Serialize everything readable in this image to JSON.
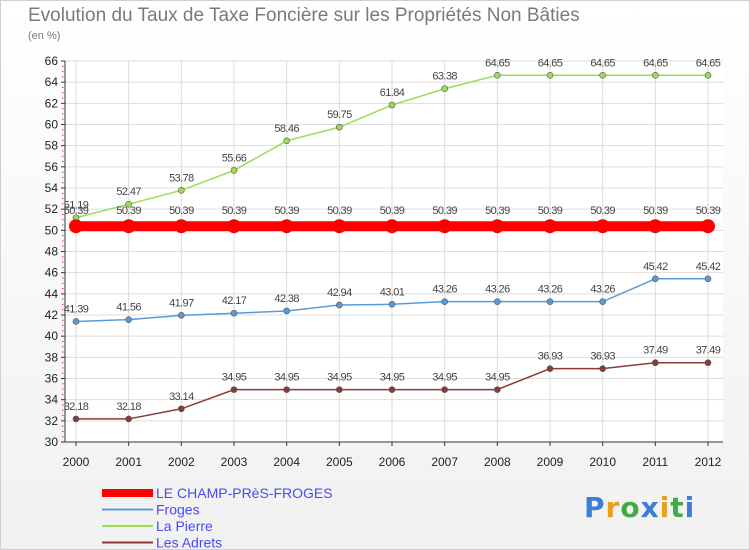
{
  "chart_data": {
    "type": "line",
    "title": "Evolution du Taux de Taxe Foncière sur les Propriétés Non Bâties",
    "ylabel": "(en %)",
    "xlabel": "",
    "ylim": [
      30,
      66
    ],
    "yticks": [
      30,
      32,
      34,
      36,
      38,
      40,
      42,
      44,
      46,
      48,
      50,
      52,
      54,
      56,
      58,
      60,
      62,
      64,
      66
    ],
    "categories": [
      "2000",
      "2001",
      "2002",
      "2003",
      "2004",
      "2005",
      "2006",
      "2007",
      "2008",
      "2009",
      "2010",
      "2011",
      "2012"
    ],
    "series": [
      {
        "name": "LE CHAMP-PRèS-FROGES",
        "color": "#ff0000",
        "values": [
          50.39,
          50.39,
          50.39,
          50.39,
          50.39,
          50.39,
          50.39,
          50.39,
          50.39,
          50.39,
          50.39,
          50.39,
          50.39
        ],
        "labels": [
          "50.39",
          "50.39",
          "50.39",
          "50.39",
          "50.39",
          "50.39",
          "50.39",
          "50.39",
          "50.39",
          "50.39",
          "50.39",
          "50.39",
          "50.39"
        ]
      },
      {
        "name": "Froges",
        "color": "#5b9bd5",
        "values": [
          41.39,
          41.56,
          41.97,
          42.17,
          42.38,
          42.94,
          43.01,
          43.26,
          43.26,
          43.26,
          43.26,
          45.42,
          45.42
        ],
        "labels": [
          "41.39",
          "41.56",
          "41.97",
          "42.17",
          "42.38",
          "42.94",
          "43.01",
          "43.26",
          "43.26",
          "43.26",
          "43.26",
          "45.42",
          "45.42"
        ]
      },
      {
        "name": "La Pierre",
        "color": "#99dd55",
        "values": [
          51.19,
          52.47,
          53.78,
          55.66,
          58.46,
          59.75,
          61.84,
          63.38,
          64.65,
          64.65,
          64.65,
          64.65,
          64.65
        ],
        "labels": [
          "51.19",
          "52.47",
          "53.78",
          "55.66",
          "58.46",
          "59.75",
          "61.84",
          "63.38",
          "64.65",
          "64.65",
          "64.65",
          "64.65",
          "64.65"
        ]
      },
      {
        "name": "Les Adrets",
        "color": "#8b3a3a",
        "values": [
          32.18,
          32.18,
          33.14,
          34.95,
          34.95,
          34.95,
          34.95,
          34.95,
          34.95,
          36.93,
          36.93,
          37.49,
          37.49
        ],
        "labels": [
          "32.18",
          "32.18",
          "33.14",
          "34.95",
          "34.95",
          "34.95",
          "34.95",
          "34.95",
          "34.95",
          "36.93",
          "36.93",
          "37.49",
          "37.49"
        ]
      }
    ],
    "legend": "bottom-left"
  },
  "logo": {
    "letters": [
      "P",
      "r",
      "o",
      "x",
      "i",
      "t",
      "i"
    ],
    "colors": [
      "#3b7fd4",
      "#e8a020",
      "#44aa44",
      "#3b7fd4",
      "#e8a020",
      "#44aa44",
      "#3b7fd4"
    ]
  }
}
